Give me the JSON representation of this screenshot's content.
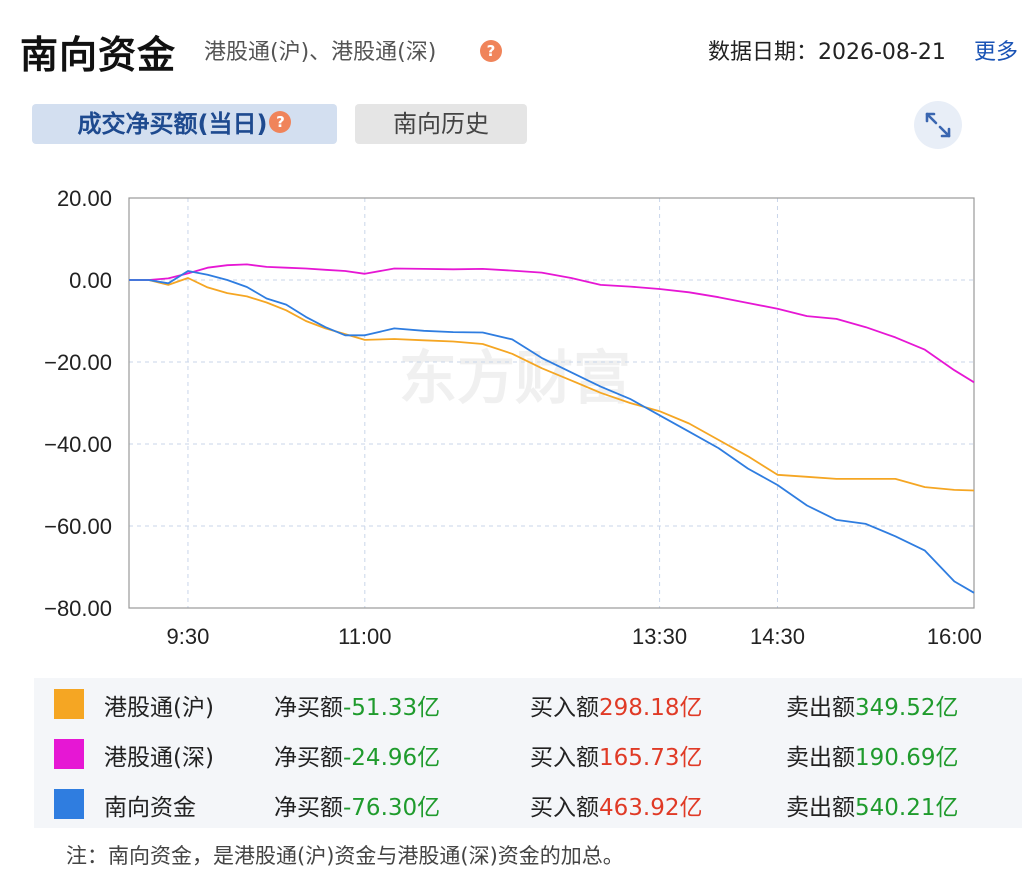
{
  "header": {
    "title": "南向资金",
    "subtitle": "港股通(沪)、港股通(深)",
    "help_glyph": "?",
    "date_label": "数据日期：2026-08-21",
    "more_label": "更多"
  },
  "tabs": [
    {
      "label": "成交净买额(当日)",
      "active": true
    },
    {
      "label": "南向历史",
      "active": false
    }
  ],
  "icons": {
    "help": "question-mark-icon",
    "expand": "expand-arrows-icon"
  },
  "watermark": "东方财富",
  "chart_data": {
    "type": "line",
    "ylim": [
      -80,
      20
    ],
    "yticks": [
      "20.00",
      "0.00",
      "−20.00",
      "−40.00",
      "−60.00",
      "−80.00"
    ],
    "xticks": [
      "9:30",
      "11:00",
      "13:30",
      "14:30",
      "16:00"
    ],
    "grid": true,
    "x": [
      "9:00",
      "9:10",
      "9:20",
      "9:30",
      "9:40",
      "9:50",
      "10:00",
      "10:10",
      "10:20",
      "10:30",
      "10:40",
      "10:50",
      "11:00",
      "11:15",
      "11:30",
      "11:45",
      "12:00",
      "12:15",
      "12:30",
      "12:45",
      "13:00",
      "13:15",
      "13:30",
      "13:45",
      "14:00",
      "14:15",
      "14:30",
      "14:45",
      "15:00",
      "15:15",
      "15:30",
      "15:45",
      "16:00",
      "16:10"
    ],
    "series": [
      {
        "name": "港股通(沪)",
        "color": "#f5a623",
        "values": [
          0,
          0,
          -1.2,
          0.5,
          -1.8,
          -3.2,
          -4,
          -5.5,
          -7.4,
          -10,
          -11.8,
          -13.2,
          -14.6,
          -14.4,
          -14.7,
          -15,
          -15.6,
          -18,
          -21.5,
          -24.5,
          -27.5,
          -30,
          -32,
          -35,
          -39,
          -43,
          -47.5,
          -48,
          -48.5,
          -48.5,
          -48.5,
          -50.5,
          -51.2,
          -51.33
        ]
      },
      {
        "name": "港股通(深)",
        "color": "#e617d4",
        "values": [
          0,
          0,
          0.4,
          1.6,
          3,
          3.6,
          3.8,
          3.2,
          3,
          2.8,
          2.5,
          2.2,
          1.5,
          2.8,
          2.7,
          2.6,
          2.7,
          2.3,
          1.8,
          0.5,
          -1.2,
          -1.6,
          -2.2,
          -3,
          -4.2,
          -5.6,
          -7,
          -8.8,
          -9.5,
          -11.5,
          -14,
          -17,
          -22,
          -24.96
        ]
      },
      {
        "name": "南向资金",
        "color": "#2f7de0",
        "values": [
          0,
          0,
          -0.8,
          2.2,
          1.3,
          0,
          -1.7,
          -4.5,
          -6,
          -9,
          -11.5,
          -13.5,
          -13.5,
          -11.8,
          -12.4,
          -12.7,
          -12.8,
          -14.5,
          -19,
          -22.5,
          -26,
          -29,
          -33,
          -37,
          -41,
          -46,
          -50,
          -55,
          -58.5,
          -59.5,
          -62.5,
          -66,
          -73.5,
          -76.3
        ]
      }
    ]
  },
  "legend": {
    "col_net": "净买额",
    "col_buy": "买入额",
    "col_sell": "卖出额",
    "rows": [
      {
        "name": "港股通(沪)",
        "color": "#f5a623",
        "net": "-51.33亿",
        "buy": "298.18亿",
        "sell": "349.52亿"
      },
      {
        "name": "港股通(深)",
        "color": "#e617d4",
        "net": "-24.96亿",
        "buy": "165.73亿",
        "sell": "190.69亿"
      },
      {
        "name": "南向资金",
        "color": "#2f7de0",
        "net": "-76.30亿",
        "buy": "463.92亿",
        "sell": "540.21亿"
      }
    ]
  },
  "note": "注：南向资金，是港股通(沪)资金与港股通(深)资金的加总。"
}
